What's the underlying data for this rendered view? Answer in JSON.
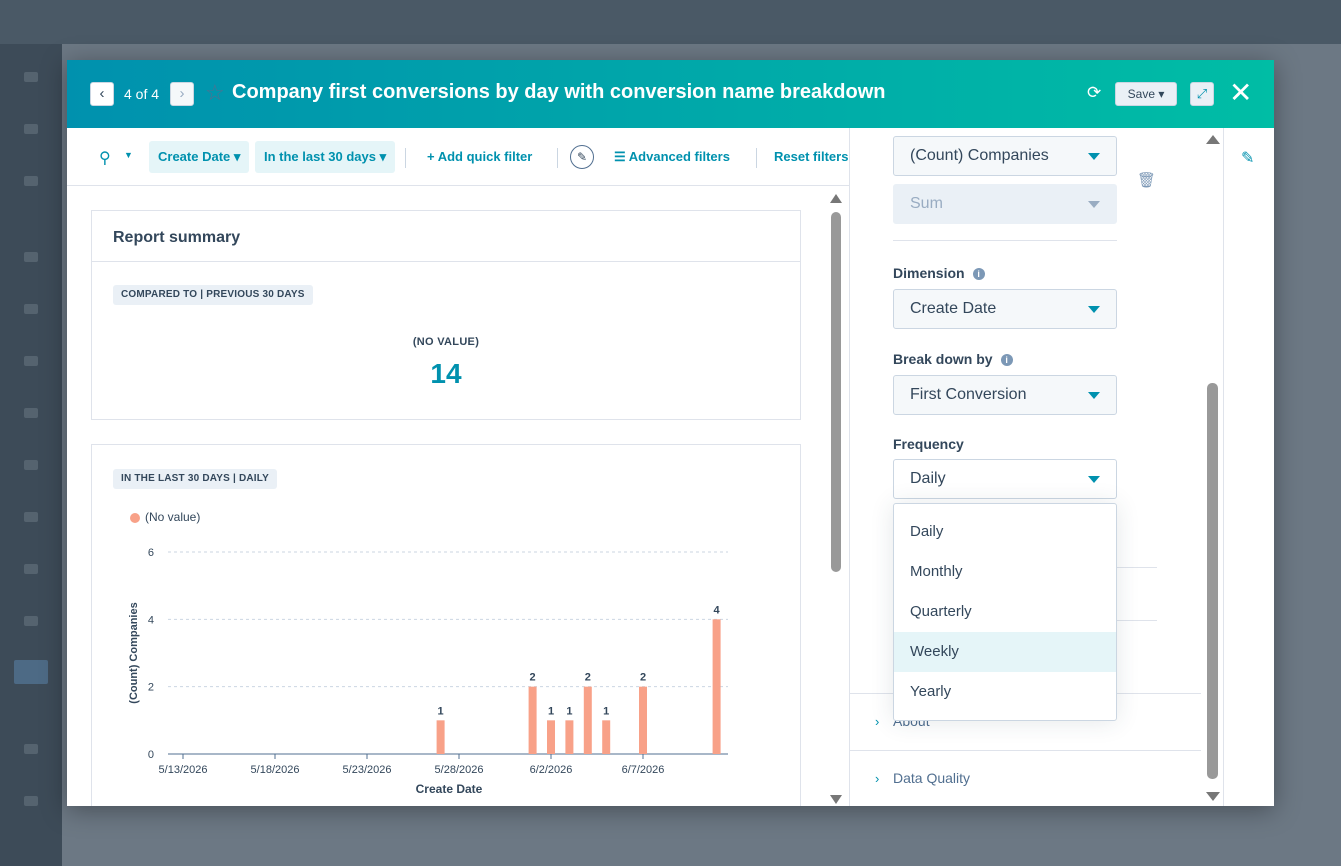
{
  "modal": {
    "pager": "4 of 4",
    "title": "Company first conversions by day with conversion name breakdown",
    "save_label": "Save ▾"
  },
  "filters": {
    "create_date": "Create Date ▾",
    "date_range": "In the last 30 days  ▾",
    "add_quick_filter": "+  Add quick filter",
    "advanced_filters": "☰  Advanced filters",
    "reset_filters": "Reset filters"
  },
  "summary": {
    "title": "Report summary",
    "compare_tag": "COMPARED TO | PREVIOUS 30 DAYS",
    "value_label": "(NO VALUE)",
    "value": "14"
  },
  "chart_card": {
    "tag": "IN THE LAST 30 DAYS | DAILY"
  },
  "chart_data": {
    "type": "bar",
    "xlabel": "Create Date",
    "ylabel": "(Count) Companies",
    "ylim": [
      0,
      6
    ],
    "yticks": [
      0,
      2,
      4,
      6
    ],
    "xtick_labels": [
      "5/13/2026",
      "5/18/2026",
      "5/23/2026",
      "5/28/2026",
      "6/2/2026",
      "6/7/2026"
    ],
    "grid": true,
    "legend_position": "top-left",
    "series": [
      {
        "name": "(No value)",
        "color": "#f8a188",
        "x": [
          "5/27/2026",
          "6/1/2026",
          "6/2/2026",
          "6/3/2026",
          "6/4/2026",
          "6/5/2026",
          "6/7/2026",
          "6/11/2026"
        ],
        "values": [
          1,
          2,
          1,
          1,
          2,
          1,
          2,
          4
        ]
      }
    ]
  },
  "config": {
    "measure_value": "(Count) Companies",
    "aggregation_value": "Sum",
    "dimension_label": "Dimension",
    "dimension_value": "Create Date",
    "breakdown_label": "Break down by",
    "breakdown_value": "First Conversion",
    "frequency_label": "Frequency",
    "frequency_value": "Daily",
    "frequency_options": [
      "Daily",
      "Monthly",
      "Quarterly",
      "Weekly",
      "Yearly"
    ],
    "sections": [
      "About",
      "Data Quality"
    ]
  },
  "icons": {
    "prev": "chevron-left-icon",
    "next": "chevron-right-icon",
    "star": "star-icon",
    "refresh": "refresh-icon",
    "expand": "expand-icon",
    "close": "close-icon",
    "search": "search-icon",
    "edit": "pencil-icon",
    "trash": "trash-icon",
    "info": "info-icon"
  },
  "colors": {
    "header_gradient_start": "#0091ae",
    "header_gradient_end": "#00bda5",
    "accent": "#0091ae",
    "bar": "#f8a188"
  }
}
